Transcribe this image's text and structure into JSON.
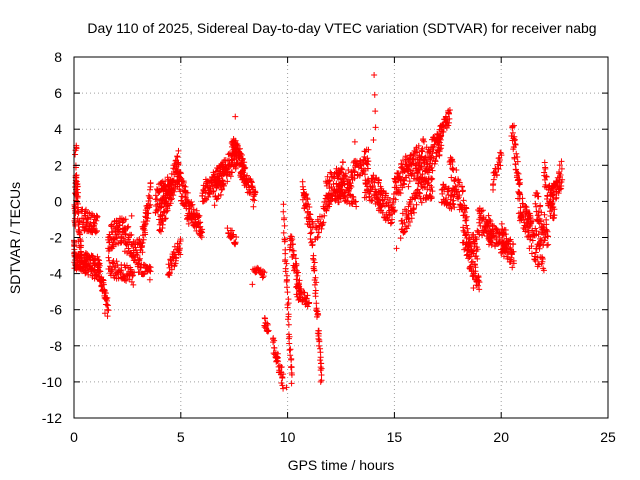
{
  "chart_data": {
    "type": "scatter",
    "title": "Day 110 of 2025, Sidereal Day-to-day VTEC variation (SDTVAR) for receiver nabg",
    "xlabel": "GPS time / hours",
    "ylabel": "SDTVAR / TECUs",
    "xlim": [
      0,
      25
    ],
    "ylim": [
      -12,
      8
    ],
    "xticks": [
      0,
      5,
      10,
      15,
      20,
      25
    ],
    "yticks": [
      -12,
      -10,
      -8,
      -6,
      -4,
      -2,
      0,
      2,
      4,
      6,
      8
    ],
    "grid": true,
    "marker": "plus",
    "color": "#ff0000",
    "series": [
      {
        "name": "SDTVAR",
        "segments": [
          {
            "x0": 0.0,
            "x1": 0.1,
            "y0": -3.0,
            "y1": 2.4,
            "jitter": 1.0,
            "n": 40
          },
          {
            "x0": 0.1,
            "x1": 0.35,
            "y0": 1.0,
            "y1": -3.5,
            "jitter": 1.0,
            "n": 50
          },
          {
            "x0": 0.0,
            "x1": 0.6,
            "y0": -3.2,
            "y1": -3.6,
            "jitter": 0.5,
            "n": 60
          },
          {
            "x0": 0.35,
            "x1": 1.1,
            "y0": -1.0,
            "y1": -1.2,
            "jitter": 0.6,
            "n": 60
          },
          {
            "x0": 0.5,
            "x1": 1.2,
            "y0": -3.4,
            "y1": -3.8,
            "jitter": 0.6,
            "n": 70
          },
          {
            "x0": 1.1,
            "x1": 1.6,
            "y0": -3.5,
            "y1": -6.0,
            "jitter": 0.5,
            "n": 50
          },
          {
            "x0": 1.6,
            "x1": 2.4,
            "y0": -2.0,
            "y1": -1.4,
            "jitter": 0.8,
            "n": 70
          },
          {
            "x0": 1.6,
            "x1": 2.8,
            "y0": -3.6,
            "y1": -4.2,
            "jitter": 0.5,
            "n": 60
          },
          {
            "x0": 2.4,
            "x1": 3.2,
            "y0": -2.0,
            "y1": -3.0,
            "jitter": 0.8,
            "n": 60
          },
          {
            "x0": 3.0,
            "x1": 3.6,
            "y0": -3.6,
            "y1": -4.0,
            "jitter": 0.4,
            "n": 30
          },
          {
            "x0": 3.2,
            "x1": 3.6,
            "y0": -2.0,
            "y1": 0.5,
            "jitter": 0.6,
            "n": 40
          },
          {
            "x0": 3.8,
            "x1": 4.6,
            "y0": 0.0,
            "y1": 0.8,
            "jitter": 0.8,
            "n": 70
          },
          {
            "x0": 4.0,
            "x1": 4.9,
            "y0": -1.2,
            "y1": 2.0,
            "jitter": 0.8,
            "n": 90
          },
          {
            "x0": 4.4,
            "x1": 5.0,
            "y0": -3.8,
            "y1": -2.4,
            "jitter": 0.5,
            "n": 40
          },
          {
            "x0": 4.8,
            "x1": 5.4,
            "y0": 1.5,
            "y1": -0.6,
            "jitter": 0.8,
            "n": 60
          },
          {
            "x0": 5.4,
            "x1": 6.0,
            "y0": -0.4,
            "y1": -1.6,
            "jitter": 0.6,
            "n": 60
          },
          {
            "x0": 6.0,
            "x1": 7.0,
            "y0": 0.4,
            "y1": 1.6,
            "jitter": 0.6,
            "n": 80
          },
          {
            "x0": 6.6,
            "x1": 7.6,
            "y0": 0.5,
            "y1": 2.8,
            "jitter": 0.8,
            "n": 90
          },
          {
            "x0": 7.2,
            "x1": 7.6,
            "y0": -1.6,
            "y1": -2.2,
            "jitter": 0.3,
            "n": 20
          },
          {
            "x0": 7.4,
            "x1": 8.0,
            "y0": 3.0,
            "y1": 1.6,
            "jitter": 0.8,
            "n": 70
          },
          {
            "x0": 7.8,
            "x1": 8.5,
            "y0": 2.0,
            "y1": 0.0,
            "jitter": 0.6,
            "n": 50
          },
          {
            "x0": 8.4,
            "x1": 8.9,
            "y0": -3.6,
            "y1": -4.2,
            "jitter": 0.3,
            "n": 20
          },
          {
            "x0": 8.9,
            "x1": 9.1,
            "y0": -6.6,
            "y1": -7.2,
            "jitter": 0.3,
            "n": 15
          },
          {
            "x0": 9.3,
            "x1": 9.8,
            "y0": -7.8,
            "y1": -10.0,
            "jitter": 0.5,
            "n": 35
          },
          {
            "x0": 9.8,
            "x1": 10.2,
            "y0": -0.5,
            "y1": -10.2,
            "jitter": 0.6,
            "n": 45
          },
          {
            "x0": 10.1,
            "x1": 10.6,
            "y0": -2.0,
            "y1": -5.0,
            "jitter": 0.6,
            "n": 45
          },
          {
            "x0": 10.4,
            "x1": 11.0,
            "y0": -5.0,
            "y1": -5.5,
            "jitter": 0.4,
            "n": 30
          },
          {
            "x0": 10.7,
            "x1": 11.2,
            "y0": 0.5,
            "y1": -2.0,
            "jitter": 0.8,
            "n": 50
          },
          {
            "x0": 11.2,
            "x1": 11.6,
            "y0": -3.0,
            "y1": -9.8,
            "jitter": 0.6,
            "n": 45
          },
          {
            "x0": 11.3,
            "x1": 12.0,
            "y0": -2.0,
            "y1": 0.5,
            "jitter": 0.6,
            "n": 40
          },
          {
            "x0": 11.8,
            "x1": 12.6,
            "y0": 0.5,
            "y1": 1.5,
            "jitter": 0.8,
            "n": 60
          },
          {
            "x0": 12.2,
            "x1": 13.0,
            "y0": 0.2,
            "y1": 1.4,
            "jitter": 0.6,
            "n": 50
          },
          {
            "x0": 12.4,
            "x1": 13.2,
            "y0": 0.5,
            "y1": 0.0,
            "jitter": 0.4,
            "n": 30
          },
          {
            "x0": 13.0,
            "x1": 13.8,
            "y0": 1.6,
            "y1": 2.4,
            "jitter": 0.6,
            "n": 50
          },
          {
            "x0": 13.6,
            "x1": 14.4,
            "y0": 1.0,
            "y1": 0.5,
            "jitter": 0.8,
            "n": 60
          },
          {
            "x0": 14.2,
            "x1": 15.0,
            "y0": 0.0,
            "y1": -0.6,
            "jitter": 0.8,
            "n": 60
          },
          {
            "x0": 15.0,
            "x1": 15.6,
            "y0": 0.6,
            "y1": 2.0,
            "jitter": 0.8,
            "n": 55
          },
          {
            "x0": 15.3,
            "x1": 16.0,
            "y0": -1.4,
            "y1": 0.0,
            "jitter": 0.7,
            "n": 45
          },
          {
            "x0": 15.6,
            "x1": 16.4,
            "y0": 1.5,
            "y1": 2.8,
            "jitter": 0.8,
            "n": 70
          },
          {
            "x0": 16.0,
            "x1": 16.8,
            "y0": 0.5,
            "y1": 1.0,
            "jitter": 0.8,
            "n": 60
          },
          {
            "x0": 16.4,
            "x1": 17.2,
            "y0": 2.0,
            "y1": 3.4,
            "jitter": 0.8,
            "n": 70
          },
          {
            "x0": 17.0,
            "x1": 17.6,
            "y0": 3.4,
            "y1": 4.8,
            "jitter": 0.4,
            "n": 40
          },
          {
            "x0": 17.2,
            "x1": 17.8,
            "y0": 0.5,
            "y1": 0.0,
            "jitter": 0.6,
            "n": 40
          },
          {
            "x0": 17.6,
            "x1": 18.4,
            "y0": 2.0,
            "y1": -0.8,
            "jitter": 0.8,
            "n": 60
          },
          {
            "x0": 18.2,
            "x1": 18.9,
            "y0": -2.0,
            "y1": -2.6,
            "jitter": 0.6,
            "n": 50
          },
          {
            "x0": 18.4,
            "x1": 19.0,
            "y0": -3.0,
            "y1": -4.6,
            "jitter": 0.5,
            "n": 40
          },
          {
            "x0": 18.9,
            "x1": 19.6,
            "y0": -1.0,
            "y1": -1.8,
            "jitter": 0.8,
            "n": 55
          },
          {
            "x0": 19.4,
            "x1": 20.2,
            "y0": -1.6,
            "y1": -2.6,
            "jitter": 0.6,
            "n": 55
          },
          {
            "x0": 19.6,
            "x1": 20.0,
            "y0": 1.0,
            "y1": 2.6,
            "jitter": 0.5,
            "n": 25
          },
          {
            "x0": 20.0,
            "x1": 20.6,
            "y0": -2.0,
            "y1": -3.0,
            "jitter": 0.8,
            "n": 50
          },
          {
            "x0": 20.5,
            "x1": 20.9,
            "y0": 4.0,
            "y1": 0.5,
            "jitter": 0.6,
            "n": 40
          },
          {
            "x0": 20.8,
            "x1": 21.4,
            "y0": -0.2,
            "y1": -1.4,
            "jitter": 0.8,
            "n": 50
          },
          {
            "x0": 21.2,
            "x1": 22.0,
            "y0": -1.4,
            "y1": -3.4,
            "jitter": 1.0,
            "n": 60
          },
          {
            "x0": 21.6,
            "x1": 22.2,
            "y0": 0.0,
            "y1": -2.0,
            "jitter": 0.8,
            "n": 45
          },
          {
            "x0": 22.0,
            "x1": 22.5,
            "y0": 1.5,
            "y1": -1.0,
            "jitter": 0.8,
            "n": 40
          },
          {
            "x0": 22.3,
            "x1": 22.85,
            "y0": 0.0,
            "y1": 1.5,
            "jitter": 0.8,
            "n": 50
          }
        ],
        "outliers": [
          {
            "x": 14.05,
            "y": 7.0
          },
          {
            "x": 14.08,
            "y": 5.9
          },
          {
            "x": 14.1,
            "y": 5.0
          },
          {
            "x": 14.12,
            "y": 4.1
          },
          {
            "x": 14.02,
            "y": 3.4
          },
          {
            "x": 13.15,
            "y": 3.3
          },
          {
            "x": 8.35,
            "y": -4.6
          },
          {
            "x": 7.55,
            "y": 4.7
          },
          {
            "x": 17.55,
            "y": 4.9
          },
          {
            "x": 15.1,
            "y": -2.6
          },
          {
            "x": 1.45,
            "y": -6.2
          },
          {
            "x": 0.05,
            "y": 2.6
          },
          {
            "x": 9.95,
            "y": -10.3
          },
          {
            "x": 11.55,
            "y": -10.0
          },
          {
            "x": 12.0,
            "y": 1.6
          },
          {
            "x": 20.6,
            "y": 4.2
          },
          {
            "x": 18.7,
            "y": -4.8
          },
          {
            "x": 2.7,
            "y": -0.8
          }
        ]
      }
    ]
  }
}
